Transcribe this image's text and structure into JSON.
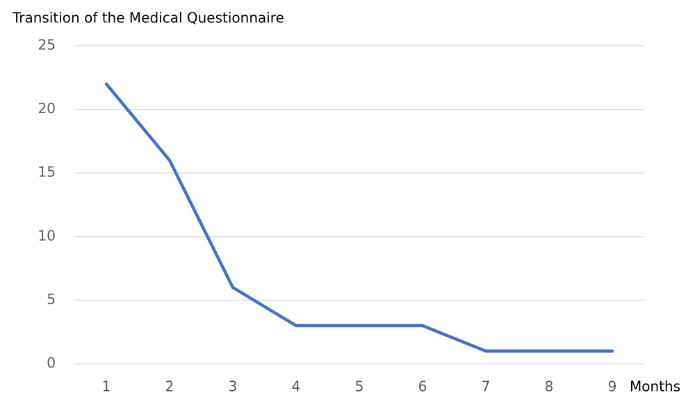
{
  "chart_data": {
    "type": "line",
    "title": "Transition of the Medical Questionnaire",
    "x_label": "Months",
    "categories": [
      "1",
      "2",
      "3",
      "4",
      "5",
      "6",
      "7",
      "8",
      "9"
    ],
    "series": [
      {
        "name": "Questionnaire",
        "color": "#4472c4",
        "values": [
          22,
          16,
          6,
          3,
          3,
          3,
          1,
          1,
          1
        ]
      }
    ],
    "ylim": [
      0,
      25
    ],
    "yticks": [
      0,
      5,
      10,
      15,
      20,
      25
    ],
    "grid": true,
    "legend": false
  }
}
